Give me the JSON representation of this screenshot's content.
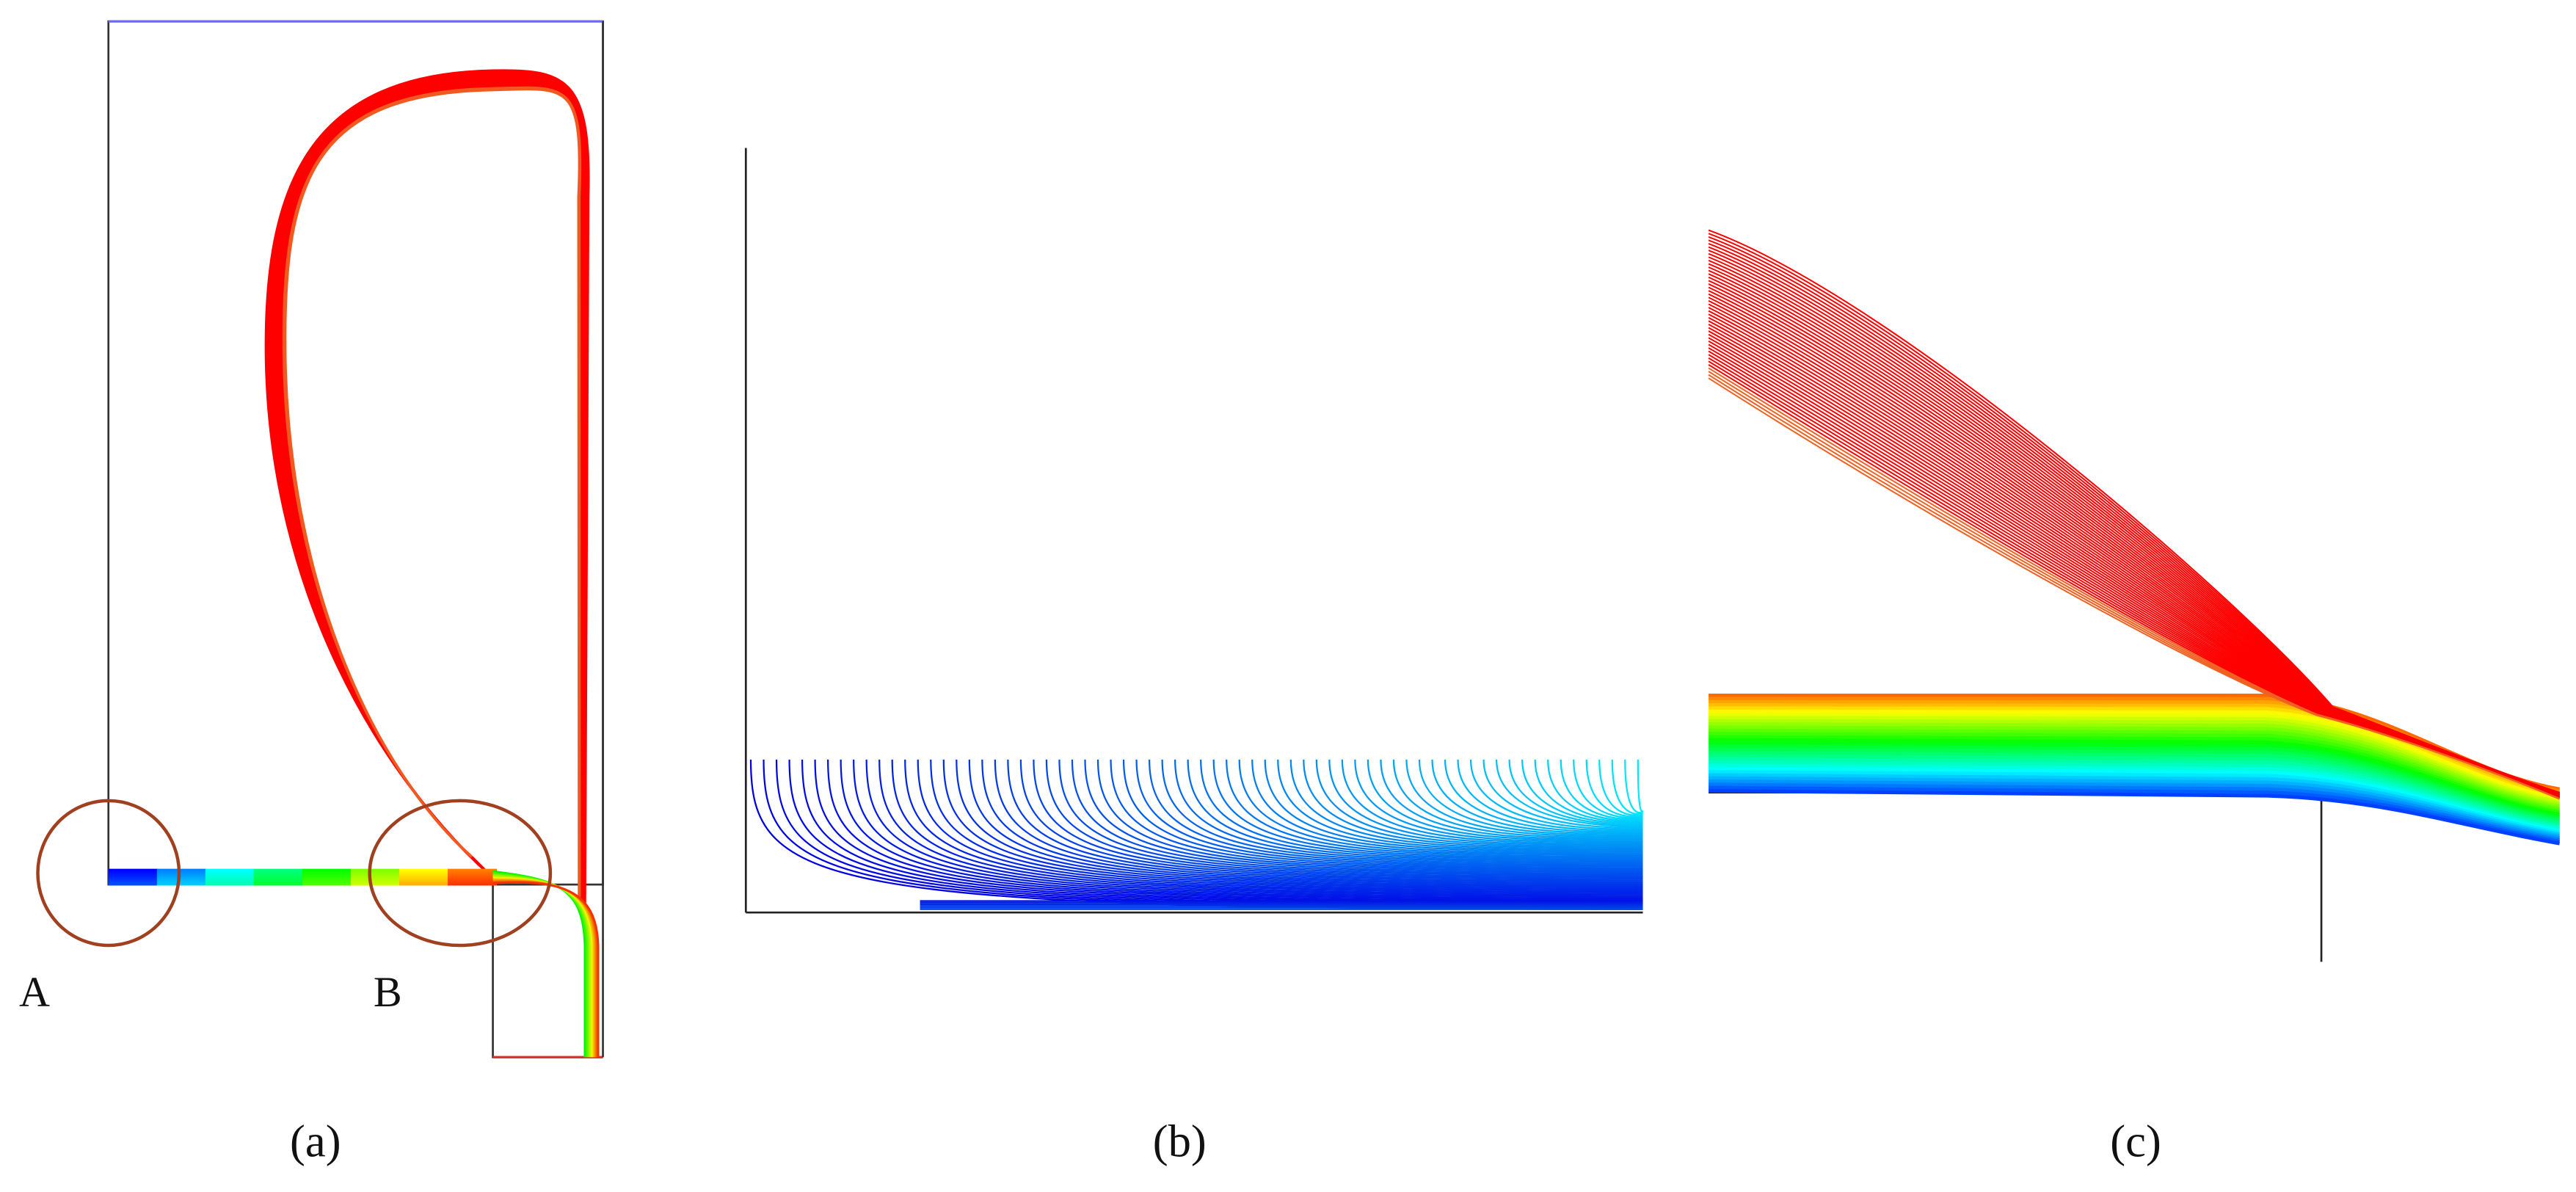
{
  "figure": {
    "panel_a": {
      "markers": [
        "A",
        "B"
      ],
      "caption": "(a)"
    },
    "panel_b": {
      "caption": "(b)"
    },
    "panel_c": {
      "caption": "(c)"
    }
  }
}
